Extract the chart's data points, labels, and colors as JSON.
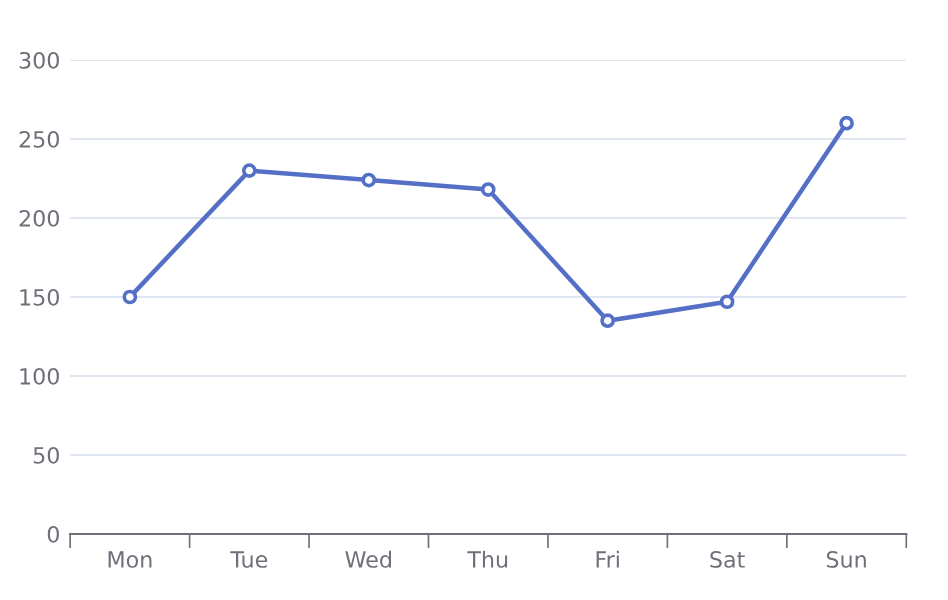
{
  "chart_data": {
    "type": "line",
    "categories": [
      "Mon",
      "Tue",
      "Wed",
      "Thu",
      "Fri",
      "Sat",
      "Sun"
    ],
    "values": [
      150,
      230,
      224,
      218,
      135,
      147,
      260
    ],
    "color": "#5470c6",
    "ylim": [
      0,
      300
    ],
    "yticks": [
      0,
      50,
      100,
      150,
      200,
      250,
      300
    ],
    "grid": "y",
    "marker": "circle",
    "line_style": "solid"
  }
}
